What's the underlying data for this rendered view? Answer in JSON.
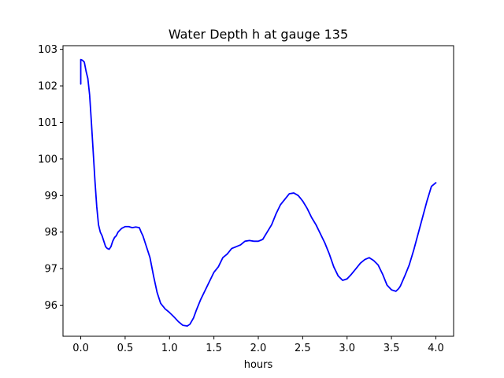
{
  "chart_data": {
    "type": "line",
    "title": "Water Depth h at gauge 135",
    "xlabel": "hours",
    "ylabel": "",
    "xlim": [
      -0.2,
      4.2
    ],
    "ylim": [
      95.15,
      103.1
    ],
    "xticks": [
      0.0,
      0.5,
      1.0,
      1.5,
      2.0,
      2.5,
      3.0,
      3.5,
      4.0
    ],
    "xtick_labels": [
      "0.0",
      "0.5",
      "1.0",
      "1.5",
      "2.0",
      "2.5",
      "3.0",
      "3.5",
      "4.0"
    ],
    "yticks": [
      96,
      97,
      98,
      99,
      100,
      101,
      102,
      103
    ],
    "ytick_labels": [
      "96",
      "97",
      "98",
      "99",
      "100",
      "101",
      "102",
      "103"
    ],
    "grid": false,
    "series": [
      {
        "color": "#0000ff",
        "x": [
          0.0,
          0.0,
          0.02,
          0.04,
          0.06,
          0.08,
          0.1,
          0.12,
          0.14,
          0.16,
          0.18,
          0.2,
          0.22,
          0.24,
          0.26,
          0.28,
          0.3,
          0.32,
          0.34,
          0.36,
          0.38,
          0.4,
          0.42,
          0.44,
          0.46,
          0.5,
          0.54,
          0.58,
          0.62,
          0.66,
          0.68,
          0.7,
          0.74,
          0.78,
          0.82,
          0.86,
          0.9,
          0.95,
          1.0,
          1.05,
          1.1,
          1.15,
          1.2,
          1.23,
          1.27,
          1.3,
          1.35,
          1.4,
          1.45,
          1.5,
          1.55,
          1.6,
          1.65,
          1.7,
          1.75,
          1.8,
          1.85,
          1.9,
          1.95,
          2.0,
          2.05,
          2.1,
          2.15,
          2.2,
          2.25,
          2.3,
          2.35,
          2.4,
          2.45,
          2.5,
          2.55,
          2.6,
          2.65,
          2.7,
          2.75,
          2.8,
          2.85,
          2.9,
          2.95,
          3.0,
          3.05,
          3.1,
          3.15,
          3.2,
          3.25,
          3.3,
          3.35,
          3.4,
          3.45,
          3.5,
          3.55,
          3.58,
          3.6,
          3.65,
          3.7,
          3.75,
          3.8,
          3.85,
          3.9,
          3.95,
          4.0
        ],
        "y": [
          102.05,
          102.72,
          102.7,
          102.65,
          102.4,
          102.2,
          101.75,
          101.0,
          100.2,
          99.4,
          98.7,
          98.2,
          98.0,
          97.9,
          97.75,
          97.6,
          97.55,
          97.53,
          97.6,
          97.75,
          97.85,
          97.9,
          98.0,
          98.05,
          98.1,
          98.15,
          98.15,
          98.12,
          98.14,
          98.12,
          98.0,
          97.9,
          97.6,
          97.3,
          96.8,
          96.35,
          96.05,
          95.9,
          95.8,
          95.68,
          95.55,
          95.45,
          95.43,
          95.48,
          95.65,
          95.85,
          96.15,
          96.4,
          96.65,
          96.9,
          97.05,
          97.3,
          97.4,
          97.55,
          97.6,
          97.65,
          97.75,
          97.77,
          97.75,
          97.75,
          97.8,
          98.0,
          98.2,
          98.5,
          98.75,
          98.9,
          99.05,
          99.07,
          99.0,
          98.85,
          98.65,
          98.4,
          98.2,
          97.95,
          97.7,
          97.4,
          97.05,
          96.8,
          96.68,
          96.72,
          96.85,
          97.0,
          97.15,
          97.25,
          97.3,
          97.22,
          97.1,
          96.85,
          96.55,
          96.42,
          96.38,
          96.45,
          96.52,
          96.8,
          97.1,
          97.5,
          97.95,
          98.4,
          98.85,
          99.25,
          99.35
        ]
      }
    ]
  }
}
